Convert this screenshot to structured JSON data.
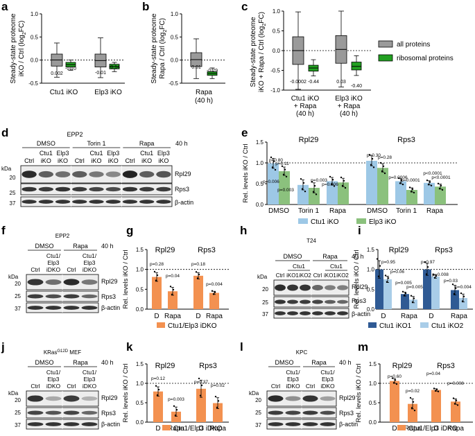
{
  "panels": {
    "a": {
      "label": "a",
      "ylabel1": "Steady-state proteome",
      "ylabel2": "iKO / Ctrl (log",
      "ylabel2_sub": "2",
      "ylabel2_end": "FC)",
      "groups": [
        "Ctu1 iKO",
        "Elp3 iKO"
      ],
      "medians": [
        "0.002",
        "-0.10",
        "-0.01",
        "-0.14"
      ]
    },
    "b": {
      "label": "b",
      "ylabel1": "Steady-state proteome",
      "ylabel2": "Rapa / Ctrl (log",
      "ylabel2_sub": "2",
      "ylabel2_end": "FC)",
      "groups": [
        "Rapa",
        "(40 h)"
      ],
      "medians": [
        "0.01",
        "-0.29"
      ]
    },
    "c": {
      "label": "c",
      "ylabel1": "Steady-state proteome",
      "ylabel2": "iKO + Rapa / Ctrl (log",
      "ylabel2_sub": "2",
      "ylabel2_end": "FC)",
      "g1": [
        "Ctu1 iKO",
        "+ Rapa",
        "(40 h)"
      ],
      "g2": [
        "Elp3 iKO",
        "+ Rapa",
        "(40 h)"
      ],
      "medians": [
        "-0.0002",
        "-0.44",
        "0.03",
        "-0.40"
      ],
      "legend": [
        "all proteins",
        "ribosomal proteins"
      ]
    },
    "d": {
      "label": "d",
      "treat": [
        "DMSO",
        "Torin 1",
        "Rapa"
      ],
      "cellline": "EPP2",
      "time": "40 h",
      "sub_top": [
        "Ctu1",
        "Elp3",
        "Ctu1",
        "Elp3",
        "Ctu1",
        "Elp3"
      ],
      "sub_bot": [
        "Ctrl",
        "iKO",
        "iKO",
        "Ctrl",
        "iKO",
        "iKO",
        "Ctrl",
        "iKO",
        "iKO"
      ],
      "kda": "kDa",
      "markers": [
        "20",
        "25",
        "37"
      ],
      "bands": [
        "Rpl29",
        "Rps3",
        "β-actin"
      ]
    },
    "e": {
      "label": "e",
      "ylabel": "Rel. levels iKO / Ctrl",
      "titles": [
        "Rpl29",
        "Rps3"
      ],
      "xt": [
        "DMSO",
        "Torin 1",
        "Rapa",
        "DMSO",
        "Torin 1",
        "Rapa"
      ],
      "pvals": [
        "p=0.80",
        "p=0.11",
        "p=0.006",
        "p=0.003",
        "p=0.003",
        "p=0.006",
        "p=0.30",
        "p=0.28",
        "p=0.0006",
        "p=0.0001",
        "p<0.0001",
        "p<0.0001"
      ],
      "legend": [
        "Ctu1 iKO",
        "Elp3 iKO"
      ]
    },
    "f": {
      "label": "f",
      "cellline": "EPP2",
      "treat": [
        "DMSO",
        "Rapa"
      ],
      "time": "40 h",
      "sub": [
        "Ctu1/",
        "Elp3",
        "iDKO"
      ],
      "ctrl": "Ctrl",
      "kda": "kDa",
      "markers": [
        "20",
        "25",
        "37"
      ],
      "bands": [
        "Rpl29",
        "Rps3",
        "β-actin"
      ]
    },
    "g": {
      "label": "g",
      "ylabel": "Rel. levels iKO / Ctrl",
      "titles": [
        "Rpl29",
        "Rps3"
      ],
      "xt": [
        "D",
        "Rapa",
        "D",
        "Rapa"
      ],
      "pvals": [
        "p=0.28",
        "p=0.04",
        "p=0.18",
        "p=0.004"
      ],
      "legend": "Ctu1/Elp3 iDKO"
    },
    "h": {
      "label": "h",
      "cellline": "T24",
      "treat": [
        "DMSO",
        "Rapa"
      ],
      "time": "40 h",
      "sub": "Ctu1",
      "lanes": [
        "Ctrl",
        "iKO1",
        "iKO2"
      ],
      "kda": "kDa",
      "markers": [
        "20",
        "25",
        "37"
      ],
      "bands": [
        "Rpl29",
        "Rps3",
        "β-actin"
      ]
    },
    "i": {
      "label": "i",
      "ylabel": "Rel. levels iKO / Ctrl",
      "titles": [
        "Rpl29",
        "Rps3"
      ],
      "xt": [
        "D",
        "Rapa",
        "D",
        "Rapa"
      ],
      "pvals": [
        "p=0.95",
        "p=0.06",
        "p=0.005",
        "p=0.005",
        "p=0.97",
        "p=0.008",
        "p=0.03",
        "p=0.004"
      ],
      "legend": [
        "Ctu1 iKO1",
        "Ctu1 iKO2"
      ]
    },
    "j": {
      "label": "j",
      "cellline": "KRas",
      "cell_sup": "G12D",
      "cell_end": " MEF",
      "treat": [
        "DMSO",
        "Rapa"
      ],
      "time": "40 h",
      "sub": [
        "Ctu1/",
        "Elp3",
        "iDKO"
      ],
      "ctrl": "Ctrl",
      "kda": "kDa",
      "markers": [
        "20",
        "25",
        "37"
      ],
      "bands": [
        "Rpl29",
        "Rps3",
        "β-actin"
      ]
    },
    "k": {
      "label": "k",
      "ylabel": "Rel. levels iKO / Ctrl",
      "titles": [
        "Rpl29",
        "Rps3"
      ],
      "xt": [
        "D",
        "Rapa",
        "D",
        "Rapa"
      ],
      "pvals": [
        "p=0.12",
        "p=0.003",
        "p=0.37",
        "p=0.02"
      ],
      "legend": "Ctu1/Elp3 iDKO"
    },
    "l": {
      "label": "l",
      "cellline": "KPC",
      "treat": [
        "DMSO",
        "Rapa"
      ],
      "time": "40 h",
      "sub": [
        "Ctu1/",
        "Elp3",
        "iDKO"
      ],
      "ctrl": "Ctrl",
      "kda": "kDa",
      "markers": [
        "20",
        "25",
        "37"
      ],
      "bands": [
        "Rpl29",
        "Rps3",
        "β-actin"
      ]
    },
    "m": {
      "label": "m",
      "ylabel": "Rel. levels iKO / Ctrl",
      "titles": [
        "Rpl29",
        "Rps3"
      ],
      "xt": [
        "D",
        "Rapa",
        "D",
        "Rapa"
      ],
      "pvals": [
        "p=0.60",
        "p=0.02",
        "p=0.04",
        "p=0.008"
      ],
      "legend": "Ctu1/Elp3 iDKO"
    }
  },
  "chart_data": [
    {
      "panel": "a",
      "type": "box",
      "ylabel": "Steady-state proteome iKO / Ctrl (log2FC)",
      "ylim": [
        -0.5,
        1.0
      ],
      "yticks": [
        -0.5,
        0.0,
        0.5,
        1.0
      ],
      "yticklabels": [
        "-0.5",
        "0.0",
        "0.5",
        "1.0"
      ],
      "boxes": [
        {
          "group": "Ctu1 iKO",
          "set": "all",
          "median": 0.002,
          "q1": -0.13,
          "q3": 0.13,
          "lo": -0.37,
          "hi": 0.37
        },
        {
          "group": "Ctu1 iKO",
          "set": "ribosomal",
          "median": -0.1,
          "q1": -0.15,
          "q3": -0.05,
          "lo": -0.22,
          "hi": 0.0
        },
        {
          "group": "Elp3 iKO",
          "set": "all",
          "median": -0.01,
          "q1": -0.15,
          "q3": 0.13,
          "lo": -0.38,
          "hi": 0.48
        },
        {
          "group": "Elp3 iKO",
          "set": "ribosomal",
          "median": -0.14,
          "q1": -0.19,
          "q3": -0.09,
          "lo": -0.25,
          "hi": -0.05
        }
      ]
    },
    {
      "panel": "b",
      "type": "box",
      "ylim": [
        -0.5,
        1.0
      ],
      "yticks": [
        -0.5,
        0.0,
        0.5,
        1.0
      ],
      "yticklabels": [
        "-0.5",
        "0.0",
        "0.5",
        "1.0"
      ],
      "boxes": [
        {
          "set": "all",
          "median": 0.01,
          "q1": -0.14,
          "q3": 0.16,
          "lo": -0.4,
          "hi": 0.46
        },
        {
          "set": "ribosomal",
          "median": -0.29,
          "q1": -0.33,
          "q3": -0.25,
          "lo": -0.4,
          "hi": -0.17
        }
      ]
    },
    {
      "panel": "c",
      "type": "box",
      "ylim": [
        -1.0,
        1.0
      ],
      "yticks": [
        -1.0,
        -0.5,
        0.0,
        0.5,
        1.0
      ],
      "yticklabels": [
        "-1.0",
        "-0.5",
        "0.0",
        "0.5",
        "1.0"
      ],
      "boxes": [
        {
          "set": "all",
          "median": -0.0002,
          "q1": -0.35,
          "q3": 0.35,
          "lo": -0.98,
          "hi": 0.98
        },
        {
          "set": "ribosomal",
          "median": -0.44,
          "q1": -0.52,
          "q3": -0.37,
          "lo": -0.64,
          "hi": -0.23
        },
        {
          "set": "all",
          "median": 0.03,
          "q1": -0.32,
          "q3": 0.38,
          "lo": -0.92,
          "hi": 1.0
        },
        {
          "set": "ribosomal",
          "median": -0.4,
          "q1": -0.49,
          "q3": -0.29,
          "lo": -0.63,
          "hi": -0.13
        }
      ]
    },
    {
      "panel": "e",
      "type": "bar",
      "ylim": [
        0,
        1.5
      ],
      "yticks": [
        0.0,
        0.5,
        1.0,
        1.5
      ],
      "yticklabels": [
        "0.0",
        "0.5",
        "1.0",
        "1.5"
      ],
      "series": [
        {
          "name": "Ctu1 iKO",
          "values": [
            0.99,
            0.47,
            0.56,
            1.05,
            0.56,
            0.52
          ]
        },
        {
          "name": "Elp3 iKO",
          "values": [
            0.8,
            0.4,
            0.53,
            0.88,
            0.35,
            0.43
          ]
        }
      ],
      "errors": [
        [
          0.12,
          0.12,
          0.09,
          0.12,
          0.06,
          0.05
        ],
        [
          0.1,
          0.12,
          0.1,
          0.1,
          0.05,
          0.06
        ]
      ]
    },
    {
      "panel": "g",
      "type": "bar",
      "ylim": [
        0,
        1.5
      ],
      "yticks": [
        0.0,
        0.5,
        1.0,
        1.5
      ],
      "yticklabels": [
        "0.0",
        "0.5",
        "1.0",
        "1.5"
      ],
      "series": [
        {
          "name": "Ctu1/Elp3 iDKO",
          "values": [
            0.81,
            0.45,
            0.84,
            0.41
          ]
        }
      ],
      "errors": [
        [
          0.11,
          0.1,
          0.08,
          0.04
        ]
      ]
    },
    {
      "panel": "i",
      "type": "bar",
      "ylim": [
        0,
        1.5
      ],
      "yticks": [
        0.0,
        0.5,
        1.0,
        1.5
      ],
      "yticklabels": [
        "0.0",
        "0.5",
        "1.0",
        "1.5"
      ],
      "series": [
        {
          "name": "Ctu1 iKO1",
          "values": [
            1.0,
            0.38,
            1.0,
            0.48
          ]
        },
        {
          "name": "Ctu1 iKO2",
          "values": [
            0.75,
            0.24,
            0.82,
            0.28
          ]
        }
      ],
      "errors": [
        [
          0.22,
          0.05,
          0.15,
          0.12
        ],
        [
          0.08,
          0.08,
          0.04,
          0.1
        ]
      ]
    },
    {
      "panel": "k",
      "type": "bar",
      "ylim": [
        0,
        1.5
      ],
      "yticks": [
        0.0,
        0.5,
        1.0,
        1.5
      ],
      "yticklabels": [
        "0.0",
        "0.5",
        "1.0",
        "1.5"
      ],
      "series": [
        {
          "name": "Ctu1/Elp3 iDKO",
          "values": [
            0.79,
            0.27,
            0.86,
            0.49
          ]
        }
      ],
      "errors": [
        [
          0.12,
          0.12,
          0.22,
          0.14
        ]
      ]
    },
    {
      "panel": "m",
      "type": "bar",
      "ylim": [
        0,
        1.5
      ],
      "yticks": [
        0.0,
        0.5,
        1.0,
        1.5
      ],
      "yticklabels": [
        "0.0",
        "0.5",
        "1.0",
        "1.5"
      ],
      "series": [
        {
          "name": "Ctu1/Elp3 iDKO",
          "values": [
            1.06,
            0.47,
            0.83,
            0.53
          ]
        }
      ],
      "errors": [
        [
          0.06,
          0.13,
          0.03,
          0.07
        ]
      ]
    }
  ],
  "colors": {
    "all": "#9a9a9a",
    "ribo": "#22a021",
    "ctu1": "#9dc8e6",
    "elp3": "#8bc17d",
    "dko": "#f39150",
    "ikO1": "#2f5a94",
    "ikO2": "#a9cde8",
    "band": "#1a1a1a",
    "blot_bg": "#ededed"
  }
}
